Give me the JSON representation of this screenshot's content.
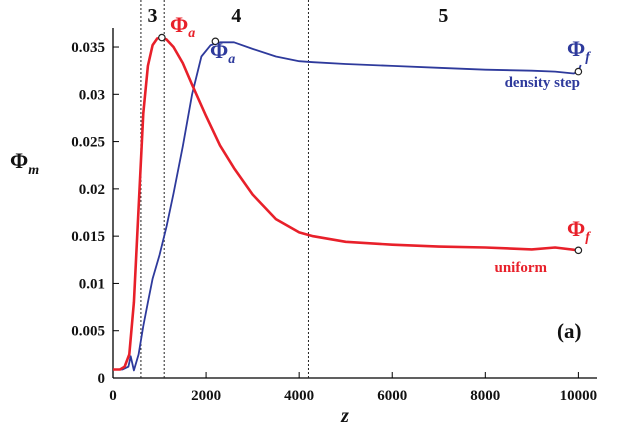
{
  "chart_data": {
    "type": "line",
    "title": "",
    "xlabel": "z",
    "ylabel": "Φ",
    "ylabel_sub": "m",
    "xlim": [
      0,
      10400
    ],
    "ylim": [
      0,
      0.0368
    ],
    "x_ticks": [
      {
        "value": 0,
        "label": "0"
      },
      {
        "value": 2000,
        "label": "2000"
      },
      {
        "value": 4000,
        "label": "4000"
      },
      {
        "value": 6000,
        "label": "6000"
      },
      {
        "value": 8000,
        "label": "8000"
      },
      {
        "value": 10000,
        "label": "10000"
      }
    ],
    "y_ticks": [
      {
        "value": 0,
        "label": "0"
      },
      {
        "value": 0.005,
        "label": "0.005"
      },
      {
        "value": 0.01,
        "label": "0.01"
      },
      {
        "value": 0.015,
        "label": "0.015"
      },
      {
        "value": 0.02,
        "label": "0.02"
      },
      {
        "value": 0.025,
        "label": "0.025"
      },
      {
        "value": 0.03,
        "label": "0.03"
      },
      {
        "value": 0.035,
        "label": "0.035"
      }
    ],
    "grid": false,
    "vlines": [
      600,
      1100,
      4200
    ],
    "regions": [
      {
        "label": "3",
        "x": 850
      },
      {
        "label": "4",
        "x": 2650
      },
      {
        "label": "5",
        "x": 7100
      }
    ],
    "series": [
      {
        "name": "uniform",
        "color": "#e8202a",
        "x": [
          0,
          150,
          250,
          350,
          450,
          550,
          650,
          750,
          850,
          950,
          1050,
          1150,
          1300,
          1500,
          1700,
          2000,
          2300,
          2600,
          3000,
          3500,
          4000,
          4300,
          5000,
          6000,
          7000,
          8000,
          9000,
          9500,
          10000
        ],
        "y": [
          0.0009,
          0.0009,
          0.0012,
          0.0025,
          0.008,
          0.018,
          0.028,
          0.033,
          0.0352,
          0.0359,
          0.036,
          0.0358,
          0.035,
          0.0333,
          0.031,
          0.0277,
          0.0246,
          0.0222,
          0.0194,
          0.0168,
          0.0154,
          0.015,
          0.0144,
          0.0141,
          0.0139,
          0.0138,
          0.0136,
          0.0138,
          0.0135
        ]
      },
      {
        "name": "density step",
        "color": "#2e3a9c",
        "x": [
          0,
          200,
          330,
          380,
          450,
          550,
          650,
          750,
          850,
          1000,
          1150,
          1300,
          1500,
          1700,
          1900,
          2100,
          2300,
          2600,
          3000,
          3500,
          4000,
          4300,
          5000,
          6000,
          7000,
          8000,
          9000,
          9500,
          9900,
          10000,
          10050
        ],
        "y": [
          0.0009,
          0.0009,
          0.0012,
          0.0023,
          0.0008,
          0.0025,
          0.0055,
          0.008,
          0.0105,
          0.013,
          0.016,
          0.0195,
          0.0245,
          0.03,
          0.034,
          0.0352,
          0.0355,
          0.0355,
          0.0348,
          0.034,
          0.0335,
          0.0334,
          0.0332,
          0.033,
          0.0328,
          0.0326,
          0.0325,
          0.0324,
          0.0322,
          0.0324,
          0.0331
        ]
      }
    ],
    "markers": [
      {
        "series": "uniform",
        "x": 1050,
        "y": 0.036
      },
      {
        "series": "density step",
        "x": 2200,
        "y": 0.0356
      },
      {
        "series": "uniform",
        "x": 10000,
        "y": 0.0135
      },
      {
        "series": "density step",
        "x": 10000,
        "y": 0.0324
      }
    ],
    "annotations": [
      {
        "symbol": "Φ",
        "sub": "a",
        "color": "#e8202a"
      },
      {
        "symbol": "Φ",
        "sub": "a",
        "color": "#2e3a9c"
      },
      {
        "symbol": "Φ",
        "sub": "f",
        "color": "#e8202a"
      },
      {
        "symbol": "Φ",
        "sub": "f",
        "color": "#2e3a9c"
      }
    ],
    "panel_label": "(a)"
  }
}
